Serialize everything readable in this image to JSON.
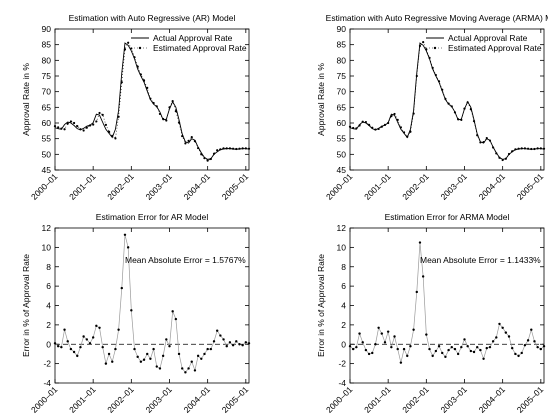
{
  "chart_data": [
    {
      "type": "line",
      "title": "Estimation with Auto Regressive (AR) Model",
      "ylabel": "Approval Rate in %",
      "ylim": [
        45,
        90
      ],
      "yticks": [
        45,
        50,
        55,
        60,
        65,
        70,
        75,
        80,
        85,
        90
      ],
      "xlim": [
        "2000-01",
        "2005-02"
      ],
      "xticks": [
        "2000–01",
        "2001–01",
        "2002–01",
        "2003–01",
        "2004–01",
        "2005–01"
      ],
      "legend": {
        "position": "top-right",
        "entries": [
          "Actual Approval Rate",
          "Estimated Approval Rate"
        ]
      },
      "x": [
        "2000-01",
        "2000-02",
        "2000-03",
        "2000-04",
        "2000-05",
        "2000-06",
        "2000-07",
        "2000-08",
        "2000-09",
        "2000-10",
        "2000-11",
        "2000-12",
        "2001-01",
        "2001-02",
        "2001-03",
        "2001-04",
        "2001-05",
        "2001-06",
        "2001-07",
        "2001-08",
        "2001-09",
        "2001-10",
        "2001-11",
        "2001-12",
        "2002-01",
        "2002-02",
        "2002-03",
        "2002-04",
        "2002-05",
        "2002-06",
        "2002-07",
        "2002-08",
        "2002-09",
        "2002-10",
        "2002-11",
        "2002-12",
        "2003-01",
        "2003-02",
        "2003-03",
        "2003-04",
        "2003-05",
        "2003-06",
        "2003-07",
        "2003-08",
        "2003-09",
        "2003-10",
        "2003-11",
        "2003-12",
        "2004-01",
        "2004-02",
        "2004-03",
        "2004-04",
        "2004-05",
        "2004-06",
        "2004-07",
        "2004-08",
        "2004-09",
        "2004-10",
        "2004-11",
        "2004-12",
        "2005-01",
        "2005-02"
      ],
      "series": [
        {
          "name": "Actual Approval Rate",
          "style": "solid",
          "values": [
            58.5,
            58.2,
            58.0,
            59.5,
            60.3,
            60.0,
            59.2,
            58.2,
            57.8,
            58.3,
            59.0,
            59.3,
            60.1,
            62.8,
            62.5,
            60.2,
            58.0,
            56.7,
            55.4,
            58.0,
            64.0,
            76.0,
            85.5,
            84.8,
            83.0,
            80.5,
            77.2,
            75.0,
            73.0,
            70.2,
            67.5,
            66.0,
            65.2,
            63.5,
            61.0,
            61.2,
            64.5,
            66.8,
            65.0,
            61.0,
            56.5,
            54.0,
            53.6,
            55.0,
            54.5,
            52.3,
            50.5,
            49.0,
            48.4,
            48.6,
            50.0,
            50.8,
            51.5,
            51.7,
            51.8,
            51.8,
            51.7,
            51.6,
            51.7,
            51.8,
            51.8,
            51.7
          ]
        },
        {
          "name": "Estimated Approval Rate",
          "style": "dotted",
          "values": [
            59.0,
            58.6,
            58.2,
            58.0,
            59.8,
            60.5,
            60.0,
            59.0,
            58.0,
            57.6,
            58.5,
            59.2,
            59.5,
            60.5,
            63.2,
            62.6,
            59.4,
            57.2,
            55.9,
            55.1,
            62.0,
            73.0,
            83.5,
            85.6,
            83.8,
            81.0,
            78.0,
            75.5,
            73.6,
            71.2,
            67.8,
            66.4,
            65.3,
            62.9,
            61.3,
            60.8,
            65.0,
            67.0,
            63.8,
            60.1,
            55.8,
            53.5,
            54.3,
            55.5,
            54.2,
            52.0,
            50.0,
            48.8,
            48.0,
            48.5,
            50.2,
            51.3,
            51.6,
            51.9,
            51.9,
            51.9,
            51.8,
            51.7,
            51.8,
            51.9,
            51.9,
            51.8
          ]
        }
      ]
    },
    {
      "type": "line",
      "title": "Estimation with Auto Regressive Moving Average (ARMA) Model",
      "ylabel": "Approval Rate in %",
      "ylim": [
        45,
        90
      ],
      "yticks": [
        45,
        50,
        55,
        60,
        65,
        70,
        75,
        80,
        85,
        90
      ],
      "xlim": [
        "2000-01",
        "2005-02"
      ],
      "xticks": [
        "2000–01",
        "2001–01",
        "2002–01",
        "2003–01",
        "2004–01",
        "2005–01"
      ],
      "legend": {
        "position": "top-right",
        "entries": [
          "Actual Approval Rate",
          "Estimated Approval Rate"
        ]
      },
      "x": [
        "2000-01",
        "2000-02",
        "2000-03",
        "2000-04",
        "2000-05",
        "2000-06",
        "2000-07",
        "2000-08",
        "2000-09",
        "2000-10",
        "2000-11",
        "2000-12",
        "2001-01",
        "2001-02",
        "2001-03",
        "2001-04",
        "2001-05",
        "2001-06",
        "2001-07",
        "2001-08",
        "2001-09",
        "2001-10",
        "2001-11",
        "2001-12",
        "2002-01",
        "2002-02",
        "2002-03",
        "2002-04",
        "2002-05",
        "2002-06",
        "2002-07",
        "2002-08",
        "2002-09",
        "2002-10",
        "2002-11",
        "2002-12",
        "2003-01",
        "2003-02",
        "2003-03",
        "2003-04",
        "2003-05",
        "2003-06",
        "2003-07",
        "2003-08",
        "2003-09",
        "2003-10",
        "2003-11",
        "2003-12",
        "2004-01",
        "2004-02",
        "2004-03",
        "2004-04",
        "2004-05",
        "2004-06",
        "2004-07",
        "2004-08",
        "2004-09",
        "2004-10",
        "2004-11",
        "2004-12",
        "2005-01",
        "2005-02"
      ],
      "series": [
        {
          "name": "Actual Approval Rate",
          "style": "solid",
          "values": [
            58.5,
            58.2,
            58.0,
            59.5,
            60.3,
            60.0,
            59.2,
            58.2,
            57.8,
            58.3,
            59.0,
            59.3,
            60.1,
            62.8,
            62.5,
            60.2,
            58.0,
            56.7,
            55.4,
            58.0,
            64.0,
            76.0,
            85.5,
            84.8,
            83.0,
            80.5,
            77.2,
            75.0,
            73.0,
            70.2,
            67.5,
            66.0,
            65.2,
            63.5,
            61.0,
            61.2,
            64.5,
            66.8,
            65.0,
            61.0,
            56.5,
            54.0,
            53.6,
            55.0,
            54.5,
            52.3,
            50.5,
            49.0,
            48.4,
            48.6,
            50.0,
            50.8,
            51.5,
            51.7,
            51.8,
            51.8,
            51.7,
            51.6,
            51.7,
            51.8,
            51.8,
            51.7
          ]
        },
        {
          "name": "Estimated Approval Rate",
          "style": "dotted",
          "values": [
            58.8,
            58.4,
            58.3,
            59.2,
            60.4,
            60.3,
            59.4,
            58.5,
            57.9,
            58.1,
            58.8,
            59.4,
            60.0,
            62.2,
            62.9,
            61.0,
            58.6,
            57.0,
            55.6,
            57.2,
            63.0,
            75.0,
            84.6,
            85.8,
            83.5,
            80.8,
            77.6,
            75.3,
            73.3,
            70.6,
            67.7,
            66.2,
            65.3,
            63.4,
            61.2,
            61.0,
            64.6,
            66.6,
            64.4,
            60.6,
            56.1,
            53.8,
            53.9,
            55.2,
            54.4,
            52.2,
            50.3,
            48.9,
            48.2,
            48.6,
            50.1,
            51.0,
            51.6,
            51.8,
            51.9,
            51.9,
            51.8,
            51.7,
            51.7,
            51.9,
            51.9,
            51.8
          ]
        }
      ]
    },
    {
      "type": "line",
      "title": "Estimation Error for AR Model",
      "ylabel": "Error in % of Approval Rate",
      "ylim": [
        -4,
        12
      ],
      "yticks": [
        -4,
        -2,
        0,
        2,
        4,
        6,
        8,
        10,
        12
      ],
      "xlim": [
        "2000-01",
        "2005-02"
      ],
      "xticks": [
        "2000–01",
        "2001–01",
        "2002–01",
        "2003–01",
        "2004–01",
        "2005–01"
      ],
      "annotation": "Mean Absolute Error = 1.5767%",
      "zero_line": "dashed",
      "x": [
        "2000-01",
        "2000-02",
        "2000-03",
        "2000-04",
        "2000-05",
        "2000-06",
        "2000-07",
        "2000-08",
        "2000-09",
        "2000-10",
        "2000-11",
        "2000-12",
        "2001-01",
        "2001-02",
        "2001-03",
        "2001-04",
        "2001-05",
        "2001-06",
        "2001-07",
        "2001-08",
        "2001-09",
        "2001-10",
        "2001-11",
        "2001-12",
        "2002-01",
        "2002-02",
        "2002-03",
        "2002-04",
        "2002-05",
        "2002-06",
        "2002-07",
        "2002-08",
        "2002-09",
        "2002-10",
        "2002-11",
        "2002-12",
        "2003-01",
        "2003-02",
        "2003-03",
        "2003-04",
        "2003-05",
        "2003-06",
        "2003-07",
        "2003-08",
        "2003-09",
        "2003-10",
        "2003-11",
        "2003-12",
        "2004-01",
        "2004-02",
        "2004-03",
        "2004-04",
        "2004-05",
        "2004-06",
        "2004-07",
        "2004-08",
        "2004-09",
        "2004-10",
        "2004-11",
        "2004-12",
        "2005-01",
        "2005-02"
      ],
      "values": [
        0.1,
        -0.2,
        -0.3,
        1.5,
        0.3,
        -0.5,
        -0.8,
        -1.2,
        -0.3,
        0.8,
        0.5,
        0.1,
        0.7,
        1.9,
        1.7,
        -0.3,
        -2.0,
        -1.0,
        -1.8,
        -0.5,
        1.5,
        5.8,
        11.3,
        10.0,
        3.5,
        -0.5,
        -1.3,
        -1.8,
        -1.6,
        -1.0,
        -1.5,
        -0.5,
        -2.3,
        -2.5,
        -1.2,
        0.5,
        -0.2,
        3.4,
        2.6,
        -1.0,
        -2.5,
        -2.9,
        -2.5,
        -1.8,
        -2.7,
        -1.2,
        -1.5,
        -1.0,
        -0.5,
        -0.5,
        0.3,
        1.4,
        0.9,
        0.5,
        -0.2,
        0.2,
        -0.1,
        0.3,
        0.0,
        -0.1,
        0.2,
        0.1
      ]
    },
    {
      "type": "line",
      "title": "Estimation Error for ARMA Model",
      "ylabel": "Error in % of Approval Rate",
      "ylim": [
        -4,
        12
      ],
      "yticks": [
        -4,
        -2,
        0,
        2,
        4,
        6,
        8,
        10,
        12
      ],
      "xlim": [
        "2000-01",
        "2005-02"
      ],
      "xticks": [
        "2000–01",
        "2001–01",
        "2002–01",
        "2003–01",
        "2004–01",
        "2005–01"
      ],
      "annotation": "Mean Absolute Error = 1.1433%",
      "zero_line": "dashed",
      "x": [
        "2000-01",
        "2000-02",
        "2000-03",
        "2000-04",
        "2000-05",
        "2000-06",
        "2000-07",
        "2000-08",
        "2000-09",
        "2000-10",
        "2000-11",
        "2000-12",
        "2001-01",
        "2001-02",
        "2001-03",
        "2001-04",
        "2001-05",
        "2001-06",
        "2001-07",
        "2001-08",
        "2001-09",
        "2001-10",
        "2001-11",
        "2001-12",
        "2002-01",
        "2002-02",
        "2002-03",
        "2002-04",
        "2002-05",
        "2002-06",
        "2002-07",
        "2002-08",
        "2002-09",
        "2002-10",
        "2002-11",
        "2002-12",
        "2003-01",
        "2003-02",
        "2003-03",
        "2003-04",
        "2003-05",
        "2003-06",
        "2003-07",
        "2003-08",
        "2003-09",
        "2003-10",
        "2003-11",
        "2003-12",
        "2004-01",
        "2004-02",
        "2004-03",
        "2004-04",
        "2004-05",
        "2004-06",
        "2004-07",
        "2004-08",
        "2004-09",
        "2004-10",
        "2004-11",
        "2004-12",
        "2005-01",
        "2005-02"
      ],
      "values": [
        -0.2,
        -0.5,
        -0.3,
        1.1,
        0.2,
        -0.6,
        -1.0,
        -0.9,
        0.0,
        1.7,
        1.1,
        0.2,
        1.3,
        -0.3,
        0.8,
        -0.5,
        -1.9,
        -0.5,
        -1.2,
        -0.2,
        1.5,
        5.4,
        10.5,
        7.0,
        1.0,
        -0.5,
        -1.2,
        -0.7,
        -0.2,
        -0.9,
        -1.3,
        -0.6,
        -0.3,
        -0.5,
        -1.0,
        -0.3,
        0.5,
        -0.2,
        -0.7,
        -0.8,
        -0.3,
        -0.6,
        -1.5,
        -0.4,
        -0.3,
        0.3,
        0.7,
        2.1,
        1.7,
        1.2,
        0.8,
        -0.4,
        -1.0,
        -1.2,
        -0.9,
        -0.1,
        0.4,
        1.5,
        0.3,
        -0.3,
        -0.5,
        -0.2
      ]
    }
  ]
}
